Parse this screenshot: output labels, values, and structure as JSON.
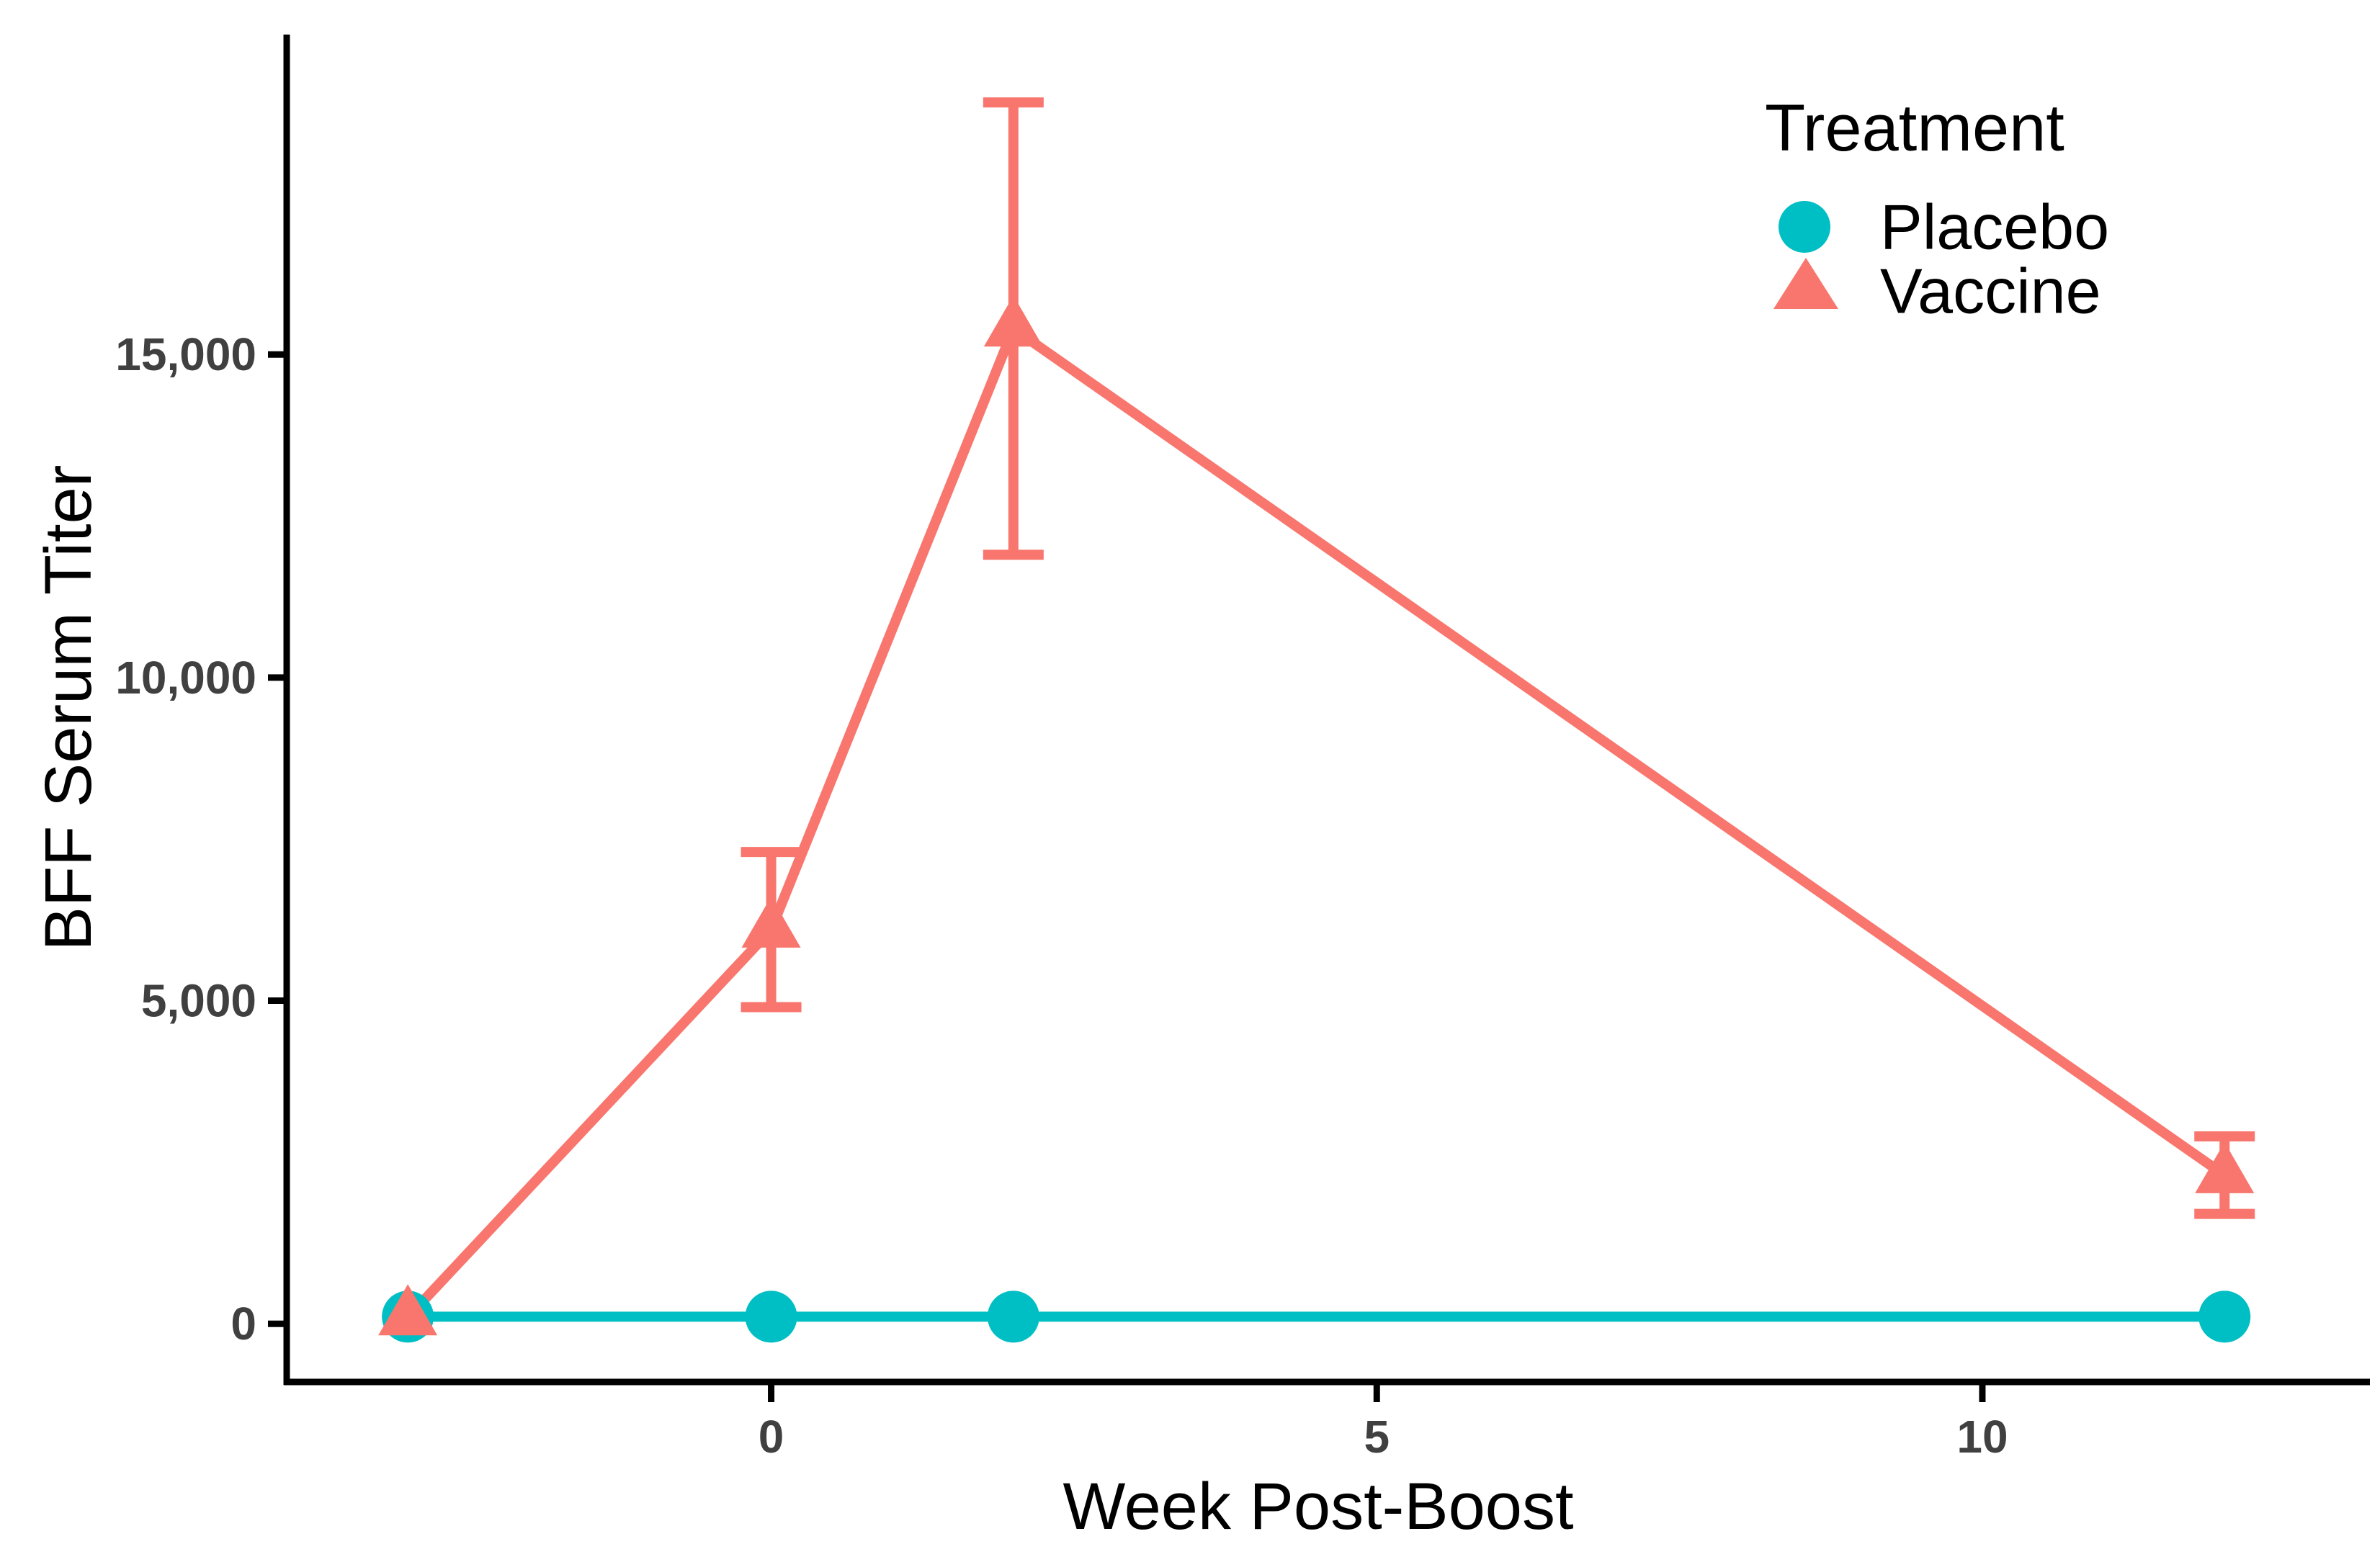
{
  "chart_data": {
    "type": "line",
    "title": "",
    "xlabel": "Week Post-Boost",
    "ylabel": "BFF Serum Titer",
    "grid": false,
    "background": "#FFFFFF",
    "axis_color": "#000000",
    "tick_label_color": "#404040",
    "xlim": [
      -4.0,
      13.2
    ],
    "ylim": [
      -900,
      19950
    ],
    "x_ticks": {
      "values": [
        0,
        5,
        10
      ],
      "labels": [
        "0",
        "5",
        "10"
      ]
    },
    "y_ticks": {
      "values": [
        0,
        5000,
        10000,
        15000
      ],
      "labels": [
        "0",
        "5,000",
        "10,000",
        "15,000"
      ]
    },
    "legend": {
      "title": "Treatment",
      "position": "inside-top-right",
      "entries": [
        {
          "label": "Placebo",
          "marker": "circle",
          "color": "#00BFC4"
        },
        {
          "label": "Vaccine",
          "marker": "triangle",
          "color": "#F8766D"
        }
      ]
    },
    "series": [
      {
        "name": "Placebo",
        "color": "#00BFC4",
        "marker": "circle",
        "x": [
          -3,
          0,
          2,
          12
        ],
        "y": [
          110,
          110,
          110,
          110
        ],
        "y_err_low": [
          null,
          null,
          null,
          null
        ],
        "y_err_high": [
          null,
          null,
          null,
          null
        ]
      },
      {
        "name": "Vaccine",
        "color": "#F8766D",
        "marker": "triangle",
        "x": [
          -3,
          0,
          2,
          12
        ],
        "y": [
          100,
          6100,
          15400,
          2300
        ],
        "y_err_low": [
          null,
          4900,
          11900,
          1700
        ],
        "y_err_high": [
          null,
          7300,
          18900,
          2900
        ]
      }
    ]
  }
}
